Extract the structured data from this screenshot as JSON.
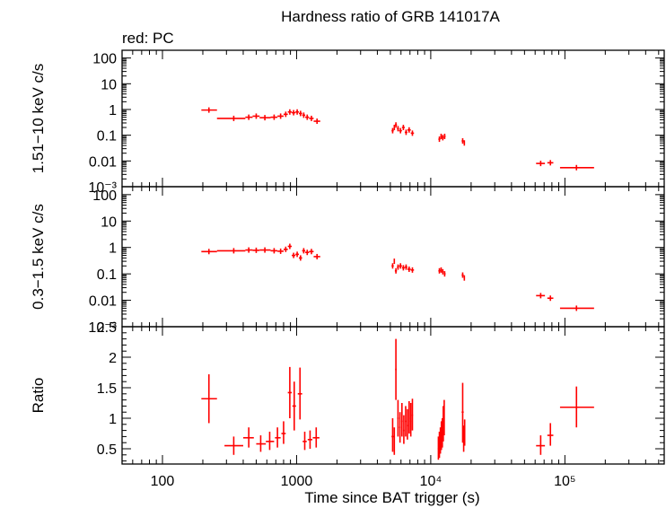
{
  "chart_data": {
    "type": "scatter",
    "title": "Hardness ratio of GRB 141017A",
    "subtitle": "red: PC",
    "xlabel": "Time since BAT trigger (s)",
    "x_scale": "log",
    "xlim": [
      50,
      550000
    ],
    "x_ticks": [
      {
        "value": 100,
        "label": "100"
      },
      {
        "value": 1000,
        "label": "1000"
      },
      {
        "value": 10000,
        "label": "10⁴"
      },
      {
        "value": 100000,
        "label": "10⁵"
      }
    ],
    "color": "#ff0000",
    "grid": false,
    "panels": [
      {
        "id": "hard",
        "ylabel": "1.51−10 keV c/s",
        "y_scale": "log",
        "ylim": [
          0.001,
          200
        ],
        "y_ticks": [
          {
            "value": 100,
            "label": "100"
          },
          {
            "value": 10,
            "label": "10"
          },
          {
            "value": 1,
            "label": "1"
          },
          {
            "value": 0.1,
            "label": "0.1"
          },
          {
            "value": 0.01,
            "label": "0.01"
          },
          {
            "value": 0.001,
            "label": "10⁻³"
          }
        ],
        "points": [
          {
            "x": 222,
            "xlo": 195,
            "xhi": 255,
            "y": 0.95
          },
          {
            "x": 340,
            "xlo": 255,
            "xhi": 415,
            "y": 0.45
          },
          {
            "x": 440,
            "xlo": 415,
            "xhi": 470,
            "y": 0.5
          },
          {
            "x": 500,
            "xlo": 470,
            "xhi": 530,
            "y": 0.55
          },
          {
            "x": 580,
            "xlo": 530,
            "xhi": 640,
            "y": 0.48
          },
          {
            "x": 680,
            "xlo": 640,
            "xhi": 720,
            "y": 0.5
          },
          {
            "x": 760,
            "xlo": 720,
            "xhi": 800,
            "y": 0.55
          },
          {
            "x": 830,
            "xlo": 800,
            "xhi": 860,
            "y": 0.65
          },
          {
            "x": 890,
            "xlo": 860,
            "xhi": 920,
            "y": 0.8
          },
          {
            "x": 950,
            "xlo": 920,
            "xhi": 980,
            "y": 0.75
          },
          {
            "x": 1010,
            "xlo": 980,
            "xhi": 1040,
            "y": 0.8
          },
          {
            "x": 1070,
            "xlo": 1040,
            "xhi": 1100,
            "y": 0.7
          },
          {
            "x": 1130,
            "xlo": 1100,
            "xhi": 1160,
            "y": 0.6
          },
          {
            "x": 1200,
            "xlo": 1160,
            "xhi": 1240,
            "y": 0.5
          },
          {
            "x": 1290,
            "xlo": 1240,
            "xhi": 1340,
            "y": 0.45
          },
          {
            "x": 1420,
            "xlo": 1340,
            "xhi": 1500,
            "y": 0.35
          },
          {
            "x": 5200,
            "xlo": 5100,
            "xhi": 5300,
            "y": 0.15
          },
          {
            "x": 5350,
            "xlo": 5300,
            "xhi": 5400,
            "y": 0.2
          },
          {
            "x": 5500,
            "xlo": 5400,
            "xhi": 5600,
            "y": 0.25
          },
          {
            "x": 5700,
            "xlo": 5600,
            "xhi": 5800,
            "y": 0.18
          },
          {
            "x": 5950,
            "xlo": 5800,
            "xhi": 6100,
            "y": 0.15
          },
          {
            "x": 6250,
            "xlo": 6100,
            "xhi": 6400,
            "y": 0.2
          },
          {
            "x": 6550,
            "xlo": 6400,
            "xhi": 6700,
            "y": 0.13
          },
          {
            "x": 6900,
            "xlo": 6700,
            "xhi": 7100,
            "y": 0.16
          },
          {
            "x": 7300,
            "xlo": 7100,
            "xhi": 7500,
            "y": 0.12
          },
          {
            "x": 11600,
            "xlo": 11400,
            "xhi": 11800,
            "y": 0.07
          },
          {
            "x": 11950,
            "xlo": 11800,
            "xhi": 12100,
            "y": 0.09
          },
          {
            "x": 12300,
            "xlo": 12100,
            "xhi": 12500,
            "y": 0.08
          },
          {
            "x": 12700,
            "xlo": 12500,
            "xhi": 12900,
            "y": 0.09
          },
          {
            "x": 17300,
            "xlo": 17000,
            "xhi": 17600,
            "y": 0.06
          },
          {
            "x": 17800,
            "xlo": 17600,
            "xhi": 18000,
            "y": 0.05
          },
          {
            "x": 66000,
            "xlo": 61000,
            "xhi": 71000,
            "y": 0.008
          },
          {
            "x": 78000,
            "xlo": 74000,
            "xhi": 82000,
            "y": 0.0085
          },
          {
            "x": 122000,
            "xlo": 92000,
            "xhi": 165000,
            "y": 0.0055
          }
        ]
      },
      {
        "id": "soft",
        "ylabel": "0.3−1.5 keV c/s",
        "y_scale": "log",
        "ylim": [
          0.001,
          200
        ],
        "y_ticks": [
          {
            "value": 100,
            "label": "100"
          },
          {
            "value": 10,
            "label": "10"
          },
          {
            "value": 1,
            "label": "1"
          },
          {
            "value": 0.1,
            "label": "0.1"
          },
          {
            "value": 0.01,
            "label": "0.01"
          },
          {
            "value": 0.001,
            "label": "10⁻³"
          }
        ],
        "points": [
          {
            "x": 222,
            "xlo": 195,
            "xhi": 255,
            "y": 0.7
          },
          {
            "x": 340,
            "xlo": 255,
            "xhi": 415,
            "y": 0.75
          },
          {
            "x": 440,
            "xlo": 415,
            "xhi": 470,
            "y": 0.8
          },
          {
            "x": 500,
            "xlo": 470,
            "xhi": 530,
            "y": 0.78
          },
          {
            "x": 580,
            "xlo": 530,
            "xhi": 640,
            "y": 0.8
          },
          {
            "x": 680,
            "xlo": 640,
            "xhi": 720,
            "y": 0.75
          },
          {
            "x": 760,
            "xlo": 720,
            "xhi": 800,
            "y": 0.72
          },
          {
            "x": 830,
            "xlo": 800,
            "xhi": 860,
            "y": 0.85
          },
          {
            "x": 890,
            "xlo": 860,
            "xhi": 920,
            "y": 1.1
          },
          {
            "x": 950,
            "xlo": 920,
            "xhi": 980,
            "y": 0.5
          },
          {
            "x": 1010,
            "xlo": 980,
            "xhi": 1040,
            "y": 0.55
          },
          {
            "x": 1070,
            "xlo": 1040,
            "xhi": 1100,
            "y": 0.4
          },
          {
            "x": 1130,
            "xlo": 1100,
            "xhi": 1160,
            "y": 0.75
          },
          {
            "x": 1200,
            "xlo": 1160,
            "xhi": 1240,
            "y": 0.65
          },
          {
            "x": 1290,
            "xlo": 1240,
            "xhi": 1340,
            "y": 0.7
          },
          {
            "x": 1420,
            "xlo": 1340,
            "xhi": 1500,
            "y": 0.45
          },
          {
            "x": 5200,
            "xlo": 5100,
            "xhi": 5300,
            "y": 0.2
          },
          {
            "x": 5350,
            "xlo": 5300,
            "xhi": 5400,
            "y": 0.3
          },
          {
            "x": 5500,
            "xlo": 5400,
            "xhi": 5600,
            "y": 0.13
          },
          {
            "x": 5700,
            "xlo": 5600,
            "xhi": 5800,
            "y": 0.18
          },
          {
            "x": 5950,
            "xlo": 5800,
            "xhi": 6100,
            "y": 0.2
          },
          {
            "x": 6250,
            "xlo": 6100,
            "xhi": 6400,
            "y": 0.17
          },
          {
            "x": 6550,
            "xlo": 6400,
            "xhi": 6700,
            "y": 0.18
          },
          {
            "x": 6900,
            "xlo": 6700,
            "xhi": 7100,
            "y": 0.15
          },
          {
            "x": 7300,
            "xlo": 7100,
            "xhi": 7500,
            "y": 0.14
          },
          {
            "x": 11600,
            "xlo": 11400,
            "xhi": 11800,
            "y": 0.13
          },
          {
            "x": 11950,
            "xlo": 11800,
            "xhi": 12100,
            "y": 0.14
          },
          {
            "x": 12300,
            "xlo": 12100,
            "xhi": 12500,
            "y": 0.12
          },
          {
            "x": 12700,
            "xlo": 12500,
            "xhi": 12900,
            "y": 0.1
          },
          {
            "x": 17300,
            "xlo": 17000,
            "xhi": 17600,
            "y": 0.09
          },
          {
            "x": 17800,
            "xlo": 17600,
            "xhi": 18000,
            "y": 0.07
          },
          {
            "x": 66000,
            "xlo": 61000,
            "xhi": 71000,
            "y": 0.015
          },
          {
            "x": 78000,
            "xlo": 74000,
            "xhi": 82000,
            "y": 0.012
          },
          {
            "x": 122000,
            "xlo": 92000,
            "xhi": 165000,
            "y": 0.005
          }
        ]
      },
      {
        "id": "ratio",
        "ylabel": "Ratio",
        "y_scale": "linear",
        "ylim": [
          0.25,
          2.5
        ],
        "y_ticks": [
          {
            "value": 0.5,
            "label": "0.5"
          },
          {
            "value": 1,
            "label": "1"
          },
          {
            "value": 1.5,
            "label": "1.5"
          },
          {
            "value": 2,
            "label": "2"
          },
          {
            "value": 2.5,
            "label": "2.5"
          }
        ],
        "points": [
          {
            "x": 222,
            "xlo": 195,
            "xhi": 255,
            "y": 1.32,
            "ylo": 0.92,
            "yhi": 1.72
          },
          {
            "x": 340,
            "xlo": 290,
            "xhi": 400,
            "y": 0.55,
            "ylo": 0.4,
            "yhi": 0.7
          },
          {
            "x": 440,
            "xlo": 400,
            "xhi": 480,
            "y": 0.68,
            "ylo": 0.52,
            "yhi": 0.85
          },
          {
            "x": 540,
            "xlo": 500,
            "xhi": 590,
            "y": 0.58,
            "ylo": 0.45,
            "yhi": 0.72
          },
          {
            "x": 630,
            "xlo": 590,
            "xhi": 680,
            "y": 0.62,
            "ylo": 0.48,
            "yhi": 0.78
          },
          {
            "x": 720,
            "xlo": 690,
            "xhi": 760,
            "y": 0.68,
            "ylo": 0.52,
            "yhi": 0.85
          },
          {
            "x": 800,
            "xlo": 770,
            "xhi": 830,
            "y": 0.75,
            "ylo": 0.58,
            "yhi": 0.95
          },
          {
            "x": 890,
            "xlo": 860,
            "xhi": 920,
            "y": 1.42,
            "ylo": 1.0,
            "yhi": 1.84
          },
          {
            "x": 960,
            "xlo": 930,
            "xhi": 990,
            "y": 1.2,
            "ylo": 0.8,
            "yhi": 1.6
          },
          {
            "x": 1060,
            "xlo": 1020,
            "xhi": 1100,
            "y": 1.4,
            "ylo": 0.98,
            "yhi": 1.83
          },
          {
            "x": 1150,
            "xlo": 1110,
            "xhi": 1190,
            "y": 0.62,
            "ylo": 0.48,
            "yhi": 0.78
          },
          {
            "x": 1260,
            "xlo": 1210,
            "xhi": 1310,
            "y": 0.65,
            "ylo": 0.5,
            "yhi": 0.8
          },
          {
            "x": 1400,
            "xlo": 1320,
            "xhi": 1480,
            "y": 0.68,
            "ylo": 0.52,
            "yhi": 0.85
          },
          {
            "x": 5200,
            "xlo": 5100,
            "xhi": 5300,
            "y": 0.7,
            "ylo": 0.45,
            "yhi": 1.0
          },
          {
            "x": 5350,
            "xlo": 5300,
            "xhi": 5400,
            "y": 0.6,
            "ylo": 0.4,
            "yhi": 0.85
          },
          {
            "x": 5500,
            "xlo": 5430,
            "xhi": 5570,
            "y": 1.8,
            "ylo": 1.3,
            "yhi": 2.3
          },
          {
            "x": 5700,
            "xlo": 5620,
            "xhi": 5780,
            "y": 1.0,
            "ylo": 0.7,
            "yhi": 1.3
          },
          {
            "x": 5900,
            "xlo": 5820,
            "xhi": 5980,
            "y": 0.85,
            "ylo": 0.6,
            "yhi": 1.1
          },
          {
            "x": 6100,
            "xlo": 6020,
            "xhi": 6180,
            "y": 0.95,
            "ylo": 0.7,
            "yhi": 1.25
          },
          {
            "x": 6300,
            "xlo": 6220,
            "xhi": 6380,
            "y": 0.8,
            "ylo": 0.58,
            "yhi": 1.05
          },
          {
            "x": 6500,
            "xlo": 6420,
            "xhi": 6580,
            "y": 0.95,
            "ylo": 0.7,
            "yhi": 1.2
          },
          {
            "x": 6700,
            "xlo": 6620,
            "xhi": 6780,
            "y": 0.88,
            "ylo": 0.65,
            "yhi": 1.15
          },
          {
            "x": 6900,
            "xlo": 6820,
            "xhi": 6980,
            "y": 1.0,
            "ylo": 0.75,
            "yhi": 1.28
          },
          {
            "x": 7100,
            "xlo": 7020,
            "xhi": 7180,
            "y": 0.95,
            "ylo": 0.7,
            "yhi": 1.25
          },
          {
            "x": 7300,
            "xlo": 7220,
            "xhi": 7380,
            "y": 1.05,
            "ylo": 0.8,
            "yhi": 1.32
          },
          {
            "x": 11400,
            "xlo": 11300,
            "xhi": 11500,
            "y": 0.5,
            "ylo": 0.32,
            "yhi": 0.7
          },
          {
            "x": 11600,
            "xlo": 11500,
            "xhi": 11700,
            "y": 0.55,
            "ylo": 0.35,
            "yhi": 0.78
          },
          {
            "x": 11800,
            "xlo": 11700,
            "xhi": 11900,
            "y": 0.62,
            "ylo": 0.42,
            "yhi": 0.85
          },
          {
            "x": 12000,
            "xlo": 11900,
            "xhi": 12100,
            "y": 0.7,
            "ylo": 0.48,
            "yhi": 0.95
          },
          {
            "x": 12200,
            "xlo": 12100,
            "xhi": 12300,
            "y": 0.75,
            "ylo": 0.52,
            "yhi": 1.0
          },
          {
            "x": 12400,
            "xlo": 12300,
            "xhi": 12500,
            "y": 0.9,
            "ylo": 0.62,
            "yhi": 1.2
          },
          {
            "x": 12600,
            "xlo": 12500,
            "xhi": 12700,
            "y": 1.0,
            "ylo": 0.72,
            "yhi": 1.3
          },
          {
            "x": 17300,
            "xlo": 17000,
            "xhi": 17600,
            "y": 1.1,
            "ylo": 0.6,
            "yhi": 1.58
          },
          {
            "x": 17600,
            "xlo": 17400,
            "xhi": 17800,
            "y": 0.65,
            "ylo": 0.45,
            "yhi": 0.88
          },
          {
            "x": 17900,
            "xlo": 17700,
            "xhi": 18100,
            "y": 0.75,
            "ylo": 0.55,
            "yhi": 0.98
          },
          {
            "x": 66000,
            "xlo": 61000,
            "xhi": 71000,
            "y": 0.55,
            "ylo": 0.4,
            "yhi": 0.72
          },
          {
            "x": 78000,
            "xlo": 74000,
            "xhi": 82000,
            "y": 0.72,
            "ylo": 0.55,
            "yhi": 0.92
          },
          {
            "x": 122000,
            "xlo": 92000,
            "xhi": 165000,
            "y": 1.18,
            "ylo": 0.85,
            "yhi": 1.52
          }
        ]
      }
    ]
  }
}
